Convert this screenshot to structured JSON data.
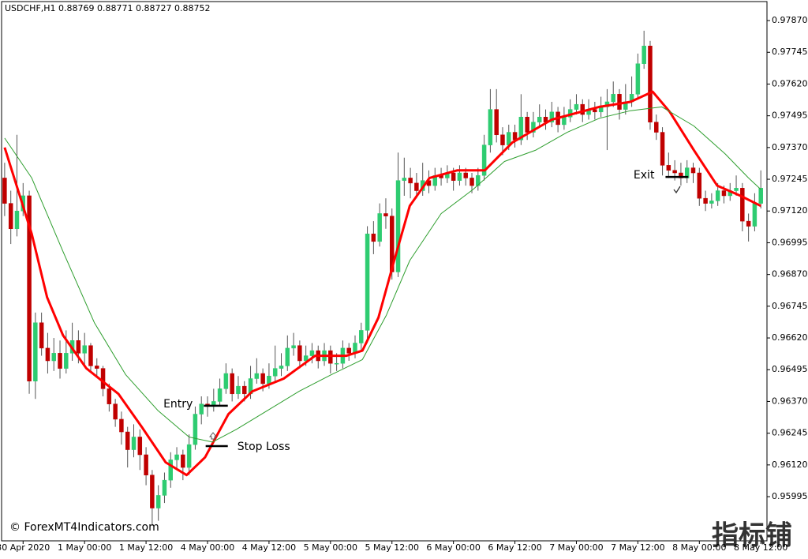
{
  "chart_data": {
    "type": "candlestick",
    "title": "USDCHF,H1  0.88769 0.88771 0.88727 0.88752",
    "watermark": "© ForexMT4Indicators.com",
    "logo": "指标铺",
    "up_color": "#2ecc71",
    "down_color": "#c00000",
    "wick_color": "#555555",
    "ylim": [
      0.95821,
      0.97951
    ],
    "xlim": [
      -0.5,
      124
    ],
    "yticks": [
      {
        "value": 0.9787,
        "label": "0.97870"
      },
      {
        "value": 0.97745,
        "label": "0.97745"
      },
      {
        "value": 0.9762,
        "label": "0.97620"
      },
      {
        "value": 0.97495,
        "label": "0.97495"
      },
      {
        "value": 0.9737,
        "label": "0.97370"
      },
      {
        "value": 0.97245,
        "label": "0.97245"
      },
      {
        "value": 0.9712,
        "label": "0.97120"
      },
      {
        "value": 0.96995,
        "label": "0.96995"
      },
      {
        "value": 0.9687,
        "label": "0.96870"
      },
      {
        "value": 0.96745,
        "label": "0.96745"
      },
      {
        "value": 0.9662,
        "label": "0.96620"
      },
      {
        "value": 0.96495,
        "label": "0.96495"
      },
      {
        "value": 0.9637,
        "label": "0.96370"
      },
      {
        "value": 0.96245,
        "label": "0.96245"
      },
      {
        "value": 0.9612,
        "label": "0.96120"
      },
      {
        "value": 0.95995,
        "label": "0.95995"
      }
    ],
    "xticks": [
      {
        "value": 3,
        "label": "30 Apr 2020"
      },
      {
        "value": 13,
        "label": "1 May 00:00"
      },
      {
        "value": 23,
        "label": "1 May 12:00"
      },
      {
        "value": 33,
        "label": "4 May 00:00"
      },
      {
        "value": 43,
        "label": "4 May 12:00"
      },
      {
        "value": 53,
        "label": "5 May 00:00"
      },
      {
        "value": 63,
        "label": "5 May 12:00"
      },
      {
        "value": 73,
        "label": "6 May 00:00"
      },
      {
        "value": 83,
        "label": "6 May 12:00"
      },
      {
        "value": 93,
        "label": "7 May 00:00"
      },
      {
        "value": 103,
        "label": "7 May 12:00"
      },
      {
        "value": 113,
        "label": "8 May 00:00"
      },
      {
        "value": 123,
        "label": "8 May 12:00"
      }
    ],
    "candles": [
      [
        0.9725,
        0.9731,
        0.971,
        0.9715
      ],
      [
        0.9715,
        0.972,
        0.9699,
        0.9705
      ],
      [
        0.9705,
        0.9742,
        0.9702,
        0.9712
      ],
      [
        0.9712,
        0.9723,
        0.971,
        0.9718
      ],
      [
        0.9718,
        0.972,
        0.964,
        0.9645
      ],
      [
        0.9645,
        0.9672,
        0.9638,
        0.9668
      ],
      [
        0.9668,
        0.9672,
        0.9655,
        0.9658
      ],
      [
        0.9658,
        0.9664,
        0.9648,
        0.9653
      ],
      [
        0.9653,
        0.9662,
        0.9649,
        0.9656
      ],
      [
        0.9656,
        0.9661,
        0.9646,
        0.965
      ],
      [
        0.965,
        0.9665,
        0.9648,
        0.9656
      ],
      [
        0.9656,
        0.9668,
        0.9653,
        0.9661
      ],
      [
        0.9661,
        0.9665,
        0.9652,
        0.9656
      ],
      [
        0.9656,
        0.9664,
        0.9651,
        0.9659
      ],
      [
        0.9659,
        0.966,
        0.9649,
        0.9651
      ],
      [
        0.9651,
        0.9654,
        0.9647,
        0.965
      ],
      [
        0.965,
        0.9651,
        0.9639,
        0.9642
      ],
      [
        0.9642,
        0.9644,
        0.9633,
        0.9636
      ],
      [
        0.9636,
        0.9638,
        0.9627,
        0.963
      ],
      [
        0.963,
        0.9633,
        0.962,
        0.9625
      ],
      [
        0.9625,
        0.9627,
        0.9611,
        0.9618
      ],
      [
        0.9618,
        0.9628,
        0.9615,
        0.9623
      ],
      [
        0.9623,
        0.9626,
        0.961,
        0.9616
      ],
      [
        0.9616,
        0.9619,
        0.9604,
        0.9608
      ],
      [
        0.9608,
        0.961,
        0.9588,
        0.9595
      ],
      [
        0.9595,
        0.9604,
        0.959,
        0.96
      ],
      [
        0.96,
        0.9609,
        0.9597,
        0.9606
      ],
      [
        0.9606,
        0.9617,
        0.9603,
        0.9614
      ],
      [
        0.9614,
        0.9619,
        0.961,
        0.9616
      ],
      [
        0.9616,
        0.9618,
        0.9606,
        0.9611
      ],
      [
        0.9611,
        0.9624,
        0.9608,
        0.962
      ],
      [
        0.962,
        0.9635,
        0.9618,
        0.9632
      ],
      [
        0.9632,
        0.9639,
        0.9628,
        0.9636
      ],
      [
        0.9636,
        0.9639,
        0.9631,
        0.9635
      ],
      [
        0.9635,
        0.9642,
        0.9633,
        0.9637
      ],
      [
        0.9637,
        0.9646,
        0.9635,
        0.9642
      ],
      [
        0.9642,
        0.9652,
        0.964,
        0.9648
      ],
      [
        0.9648,
        0.965,
        0.9637,
        0.964
      ],
      [
        0.964,
        0.9647,
        0.9638,
        0.9643
      ],
      [
        0.9643,
        0.9645,
        0.9637,
        0.964
      ],
      [
        0.964,
        0.9651,
        0.9638,
        0.9646
      ],
      [
        0.9646,
        0.9654,
        0.9644,
        0.9648
      ],
      [
        0.9648,
        0.965,
        0.9641,
        0.9644
      ],
      [
        0.9644,
        0.9652,
        0.9642,
        0.9647
      ],
      [
        0.9647,
        0.9659,
        0.9645,
        0.965
      ],
      [
        0.965,
        0.9656,
        0.9647,
        0.9651
      ],
      [
        0.9651,
        0.9663,
        0.9649,
        0.9658
      ],
      [
        0.9658,
        0.9664,
        0.9655,
        0.9659
      ],
      [
        0.9659,
        0.9661,
        0.965,
        0.9653
      ],
      [
        0.9653,
        0.9659,
        0.9651,
        0.9655
      ],
      [
        0.9655,
        0.966,
        0.9652,
        0.9657
      ],
      [
        0.9657,
        0.9659,
        0.965,
        0.9653
      ],
      [
        0.9653,
        0.966,
        0.9651,
        0.9657
      ],
      [
        0.9657,
        0.9659,
        0.9648,
        0.9652
      ],
      [
        0.9652,
        0.9656,
        0.9649,
        0.9652
      ],
      [
        0.9652,
        0.9661,
        0.965,
        0.9658
      ],
      [
        0.9658,
        0.966,
        0.9653,
        0.9656
      ],
      [
        0.9656,
        0.9663,
        0.9654,
        0.966
      ],
      [
        0.966,
        0.9668,
        0.9657,
        0.9665
      ],
      [
        0.9665,
        0.9706,
        0.966,
        0.9703
      ],
      [
        0.9703,
        0.9708,
        0.9695,
        0.97
      ],
      [
        0.97,
        0.9715,
        0.9698,
        0.9711
      ],
      [
        0.9711,
        0.9717,
        0.9705,
        0.971
      ],
      [
        0.971,
        0.9713,
        0.9685,
        0.9688
      ],
      [
        0.9688,
        0.9735,
        0.9686,
        0.9724
      ],
      [
        0.9724,
        0.9733,
        0.9718,
        0.9725
      ],
      [
        0.9725,
        0.9729,
        0.9717,
        0.9723
      ],
      [
        0.9723,
        0.9727,
        0.9717,
        0.972
      ],
      [
        0.972,
        0.9731,
        0.9718,
        0.9724
      ],
      [
        0.9724,
        0.9728,
        0.9719,
        0.9722
      ],
      [
        0.9722,
        0.9729,
        0.972,
        0.9726
      ],
      [
        0.9726,
        0.9729,
        0.9722,
        0.9725
      ],
      [
        0.9725,
        0.973,
        0.9723,
        0.9727
      ],
      [
        0.9727,
        0.9729,
        0.972,
        0.9724
      ],
      [
        0.9724,
        0.973,
        0.9722,
        0.9727
      ],
      [
        0.9727,
        0.9729,
        0.9722,
        0.9725
      ],
      [
        0.9725,
        0.9727,
        0.9719,
        0.9722
      ],
      [
        0.9722,
        0.9729,
        0.972,
        0.9726
      ],
      [
        0.9726,
        0.9742,
        0.9724,
        0.9738
      ],
      [
        0.9738,
        0.976,
        0.9735,
        0.9752
      ],
      [
        0.9752,
        0.976,
        0.9739,
        0.9742
      ],
      [
        0.9742,
        0.9745,
        0.9734,
        0.9738
      ],
      [
        0.9738,
        0.9746,
        0.9736,
        0.9743
      ],
      [
        0.9743,
        0.9746,
        0.9737,
        0.974
      ],
      [
        0.974,
        0.9758,
        0.9738,
        0.9749
      ],
      [
        0.9749,
        0.9751,
        0.974,
        0.9743
      ],
      [
        0.9743,
        0.9751,
        0.9741,
        0.9747
      ],
      [
        0.9747,
        0.9754,
        0.9745,
        0.9749
      ],
      [
        0.9749,
        0.9752,
        0.9744,
        0.9747
      ],
      [
        0.9747,
        0.9755,
        0.9745,
        0.9751
      ],
      [
        0.9751,
        0.9753,
        0.9743,
        0.9746
      ],
      [
        0.9746,
        0.9753,
        0.9744,
        0.9749
      ],
      [
        0.9749,
        0.9756,
        0.9747,
        0.9752
      ],
      [
        0.9752,
        0.9758,
        0.975,
        0.9754
      ],
      [
        0.9754,
        0.9756,
        0.9747,
        0.975
      ],
      [
        0.975,
        0.9756,
        0.9748,
        0.9752
      ],
      [
        0.9752,
        0.9755,
        0.9748,
        0.9751
      ],
      [
        0.9751,
        0.9757,
        0.9749,
        0.9753
      ],
      [
        0.9753,
        0.976,
        0.9736,
        0.9755
      ],
      [
        0.9755,
        0.9763,
        0.9753,
        0.9758
      ],
      [
        0.9758,
        0.976,
        0.9748,
        0.9752
      ],
      [
        0.9752,
        0.9762,
        0.975,
        0.9755
      ],
      [
        0.9755,
        0.9765,
        0.9753,
        0.9758
      ],
      [
        0.9758,
        0.9774,
        0.9756,
        0.977
      ],
      [
        0.977,
        0.9783,
        0.9768,
        0.9777
      ],
      [
        0.9777,
        0.9779,
        0.9744,
        0.9747
      ],
      [
        0.9747,
        0.975,
        0.974,
        0.9743
      ],
      [
        0.9743,
        0.9745,
        0.9726,
        0.973
      ],
      [
        0.973,
        0.9735,
        0.9725,
        0.9728
      ],
      [
        0.9728,
        0.9732,
        0.9724,
        0.9727
      ],
      [
        0.9727,
        0.9731,
        0.9722,
        0.9725
      ],
      [
        0.9725,
        0.9732,
        0.9723,
        0.9729
      ],
      [
        0.9729,
        0.9731,
        0.9723,
        0.9727
      ],
      [
        0.9727,
        0.9729,
        0.9714,
        0.9717
      ],
      [
        0.9717,
        0.972,
        0.9712,
        0.9715
      ],
      [
        0.9715,
        0.9719,
        0.9713,
        0.9716
      ],
      [
        0.9716,
        0.9723,
        0.9714,
        0.972
      ],
      [
        0.972,
        0.9722,
        0.9715,
        0.9718
      ],
      [
        0.9718,
        0.9723,
        0.9716,
        0.972
      ],
      [
        0.972,
        0.9726,
        0.9718,
        0.9721
      ],
      [
        0.9721,
        0.9723,
        0.9704,
        0.9708
      ],
      [
        0.9708,
        0.9711,
        0.97,
        0.9706
      ],
      [
        0.9706,
        0.9719,
        0.9704,
        0.9715
      ],
      [
        0.9715,
        0.9728,
        0.9713,
        0.9721
      ]
    ],
    "series": [
      {
        "color": "#ff0000",
        "width": 3,
        "x": [
          0,
          4.4,
          6.9,
          9.5,
          13.3,
          18.5,
          22.3,
          26.2,
          29.6,
          32.6,
          36.4,
          40.3,
          45.4,
          50.5,
          55.6,
          58.2,
          60.8,
          63.3,
          65.9,
          69.1,
          73.6,
          78.1,
          82.6,
          89,
          96.7,
          101.8,
          105.4,
          108.2,
          112.1,
          115.9,
          119.7,
          123
        ],
        "values": [
          0.9737,
          0.9703,
          0.9678,
          0.9663,
          0.965,
          0.964,
          0.9627,
          0.9613,
          0.9608,
          0.9615,
          0.9632,
          0.9641,
          0.9646,
          0.9655,
          0.9655,
          0.9657,
          0.967,
          0.9692,
          0.9714,
          0.9725,
          0.9728,
          0.9728,
          0.9739,
          0.9748,
          0.9753,
          0.9755,
          0.9759,
          0.9751,
          0.9736,
          0.9722,
          0.9718,
          0.9714
        ]
      },
      {
        "color": "#2e9e2e",
        "width": 1,
        "x": [
          0,
          4.4,
          9.5,
          14.6,
          19.7,
          24.9,
          30,
          33.8,
          37.7,
          42.8,
          47.9,
          53.1,
          58.2,
          62.1,
          65.9,
          71,
          76.2,
          81.3,
          86.4,
          91.5,
          96.7,
          101.8,
          106.9,
          112.1,
          117.2,
          121,
          123
        ],
        "values": [
          0.97407,
          0.9725,
          0.9696,
          0.9668,
          0.96475,
          0.96335,
          0.9623,
          0.9621,
          0.9626,
          0.96335,
          0.9641,
          0.96475,
          0.96535,
          0.9671,
          0.96925,
          0.9711,
          0.97205,
          0.97315,
          0.9736,
          0.9743,
          0.97485,
          0.97515,
          0.9753,
          0.97455,
          0.97345,
          0.9725,
          0.97205
        ]
      }
    ],
    "annotations": [
      {
        "text": "Entry",
        "value": 0.96353,
        "x": [
          32.4,
          36.3
        ]
      },
      {
        "text": "Stop Loss",
        "value": 0.96194,
        "x": [
          32.7,
          36.3
        ]
      },
      {
        "text": "Exit",
        "value": 0.97254,
        "x": [
          107.5,
          111.2
        ]
      }
    ]
  }
}
